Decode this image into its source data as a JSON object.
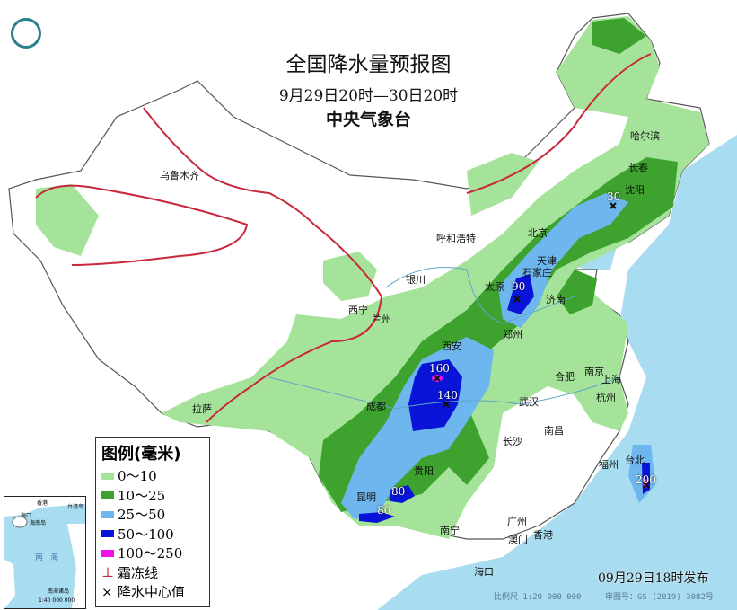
{
  "title": "全国降水量预报图",
  "period": "9月29日20时—30日20时",
  "issuer": "中央气象台",
  "publish_time": "09月29日18时发布",
  "scale": "比例尺 1:20 000 000",
  "approval": "审图号：GS (2019) 3082号",
  "legend": {
    "title": "图例(毫米)",
    "items": [
      {
        "label": "0～10",
        "color": "#a6e39a"
      },
      {
        "label": "10～25",
        "color": "#3ea32e"
      },
      {
        "label": "25～50",
        "color": "#6eb7ee"
      },
      {
        "label": "50～100",
        "color": "#0a14d8"
      },
      {
        "label": "100～250",
        "color": "#f010e8"
      }
    ],
    "frost_line": "霜冻线",
    "center_value": "降水中心值"
  },
  "inset": {
    "sea": "南海",
    "hainan": "海南岛",
    "haikou": "海口",
    "islands": "南海诸岛",
    "scale": "1:40 000 000",
    "hk": "香港",
    "tw": "台湾岛"
  },
  "cities": [
    "乌鲁木齐",
    "哈尔滨",
    "长春",
    "沈阳",
    "呼和浩特",
    "北京",
    "天津",
    "石家庄",
    "太原",
    "银川",
    "西宁",
    "兰州",
    "济南",
    "郑州",
    "西安",
    "合肥",
    "南京",
    "上海",
    "杭州",
    "武汉",
    "成都",
    "拉萨",
    "长沙",
    "南昌",
    "贵阳",
    "昆明",
    "福州",
    "台北",
    "南宁",
    "广州",
    "澳门",
    "香港",
    "海口"
  ],
  "center_values": [
    "30",
    "90",
    "160",
    "140",
    "80",
    "80",
    "200"
  ]
}
